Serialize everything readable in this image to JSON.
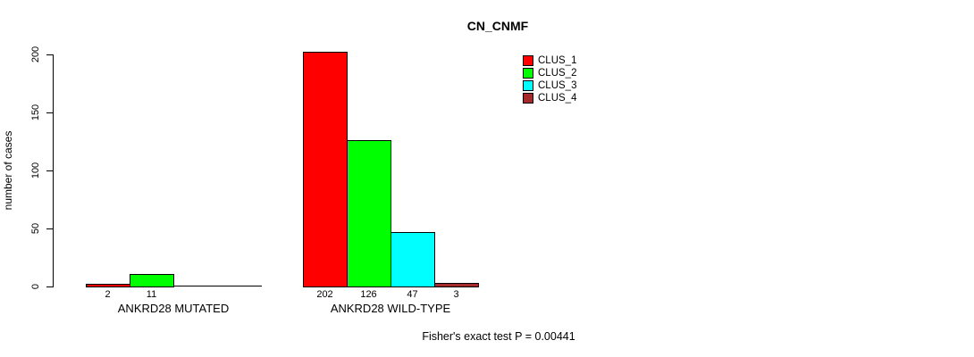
{
  "chart_data": {
    "type": "bar",
    "title": "CN_CNMF",
    "ylabel": "number of cases",
    "xlabel": "",
    "ylim": [
      0,
      200
    ],
    "yticks": [
      0,
      50,
      100,
      150,
      200
    ],
    "grid": false,
    "legend_position": "top-right",
    "categories": [
      "ANKRD28 MUTATED",
      "ANKRD28 WILD-TYPE"
    ],
    "series": [
      {
        "name": "CLUS_1",
        "color": "#FF0000",
        "values": [
          2,
          202
        ]
      },
      {
        "name": "CLUS_2",
        "color": "#00FF00",
        "values": [
          11,
          126
        ]
      },
      {
        "name": "CLUS_3",
        "color": "#00FFFF",
        "values": [
          0,
          47
        ]
      },
      {
        "name": "CLUS_4",
        "color": "#A52A2A",
        "values": [
          0,
          3
        ]
      }
    ],
    "bar_value_labels": {
      "ANKRD28 MUTATED": [
        "2",
        "11"
      ],
      "ANKRD28 WILD-TYPE": [
        "202",
        "126",
        "47",
        "3"
      ]
    },
    "annotation": "Fisher's exact test P = 0.00441"
  }
}
